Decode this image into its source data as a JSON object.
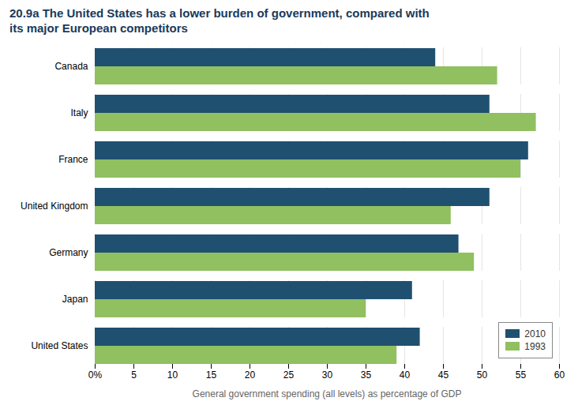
{
  "chart_data": {
    "type": "bar",
    "orientation": "horizontal",
    "title": "20.9a  The United States has a lower burden of government, compared with\nits major European competitors",
    "categories": [
      "Canada",
      "Italy",
      "France",
      "United Kingdom",
      "Germany",
      "Japan",
      "United States"
    ],
    "series": [
      {
        "name": "2010",
        "color": "#1f5070",
        "values": [
          44,
          51,
          56,
          51,
          47,
          41,
          42
        ]
      },
      {
        "name": "1993",
        "color": "#90c060",
        "values": [
          52,
          57,
          55,
          46,
          49,
          35,
          39
        ]
      }
    ],
    "xlabel": "General government spending (all levels) as percentage of GDP",
    "xlim": [
      0,
      60
    ],
    "xticks": [
      {
        "value": 0,
        "label": "0%"
      },
      5,
      10,
      15,
      20,
      25,
      30,
      35,
      40,
      45,
      50,
      55,
      60
    ],
    "grid": true,
    "legend": "lower right"
  }
}
